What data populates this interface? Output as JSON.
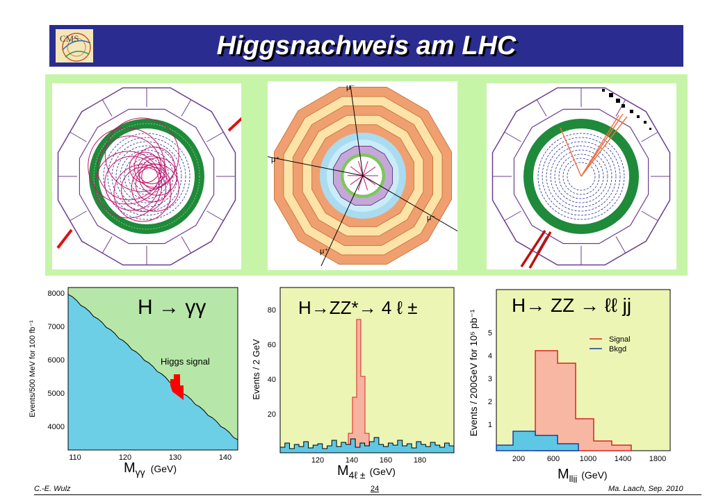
{
  "header": {
    "title": "Higgsnachweis am LHC",
    "logo_text": "CMS"
  },
  "event_displays": {
    "panel_color": "#c6f5a8",
    "events": [
      {
        "muon_labels": []
      },
      {
        "muon_labels": [
          "μ⁻",
          "μ⁺",
          "μ⁺",
          "μ⁻"
        ]
      },
      {
        "muon_labels": []
      }
    ]
  },
  "plots": {
    "gamma_gamma": {
      "process": "H → γγ",
      "ylabel": "Events/500 MeV for 100 fb⁻¹",
      "xlabel_main": "M",
      "xlabel_sub": "γγ",
      "xlabel_unit": "(GeV)",
      "yticks": [
        "4000",
        "5000",
        "6000",
        "7000",
        "8000"
      ],
      "xticks": [
        "110",
        "120",
        "130",
        "140"
      ],
      "annotation": "Higgs signal",
      "colors": {
        "background": "#b7e6a9",
        "signal": "#ff0000",
        "fill": "#6ccfe6"
      }
    },
    "four_lepton": {
      "process": "H→ZZ*→ 4 ℓ ±",
      "ylabel": "Events / 2 GeV",
      "xlabel_main": "M",
      "xlabel_sub": "4ℓ ±",
      "xlabel_unit": "(GeV)",
      "yticks": [
        "20",
        "40",
        "60",
        "80"
      ],
      "xticks": [
        "120",
        "140",
        "160",
        "180"
      ],
      "colors": {
        "background": "#ecf5b4",
        "signal": "#f5b3a0",
        "fill": "#5ec8e4"
      }
    },
    "llj": {
      "process": "H→ ZZ → ℓℓ jj",
      "ylabel": "Events / 200GeV for 10⁵ pb⁻¹",
      "xlabel_main": "M",
      "xlabel_sub": "lljj",
      "xlabel_unit": "(GeV)",
      "yticks": [
        "1",
        "2",
        "3",
        "4",
        "5"
      ],
      "xticks": [
        "200",
        "600",
        "1000",
        "1400",
        "1800"
      ],
      "legend": [
        "Signal",
        "Bkgd"
      ],
      "colors": {
        "background": "#ecf5b4",
        "signal": "#f7b7a3",
        "fill": "#5ec8e4"
      }
    }
  },
  "footer": {
    "left": "C.-E. Wulz",
    "center": "24",
    "right": "Ma. Laach, Sep. 2010"
  }
}
